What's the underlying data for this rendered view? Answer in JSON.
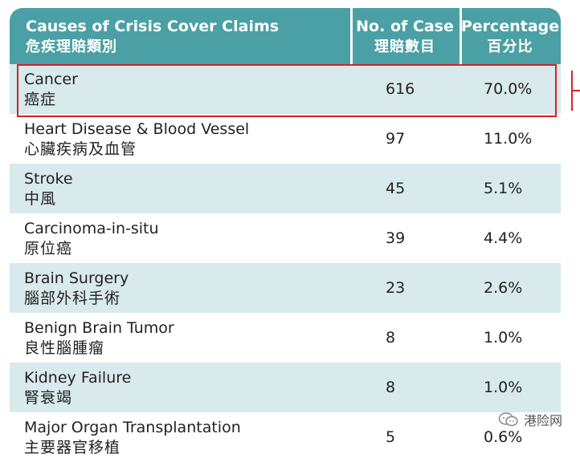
{
  "header": {
    "col1_en": "Causes of Crisis Cover Claims",
    "col1_zh": "危疾理賠類別",
    "col2_en": "No. of Case",
    "col2_zh": "理賠數目",
    "col3_en": "Percentage",
    "col3_zh": "百分比"
  },
  "rows": [
    {
      "en": "Cancer",
      "zh": "癌症",
      "cases": "616",
      "pct": "70.0%"
    },
    {
      "en": "Heart Disease & Blood Vessel",
      "zh": "心臟疾病及血管",
      "cases": "97",
      "pct": "11.0%"
    },
    {
      "en": "Stroke",
      "zh": "中風",
      "cases": "45",
      "pct": "5.1%"
    },
    {
      "en": "Carcinoma-in-situ",
      "zh": "原位癌",
      "cases": "39",
      "pct": "4.4%"
    },
    {
      "en": "Brain Surgery",
      "zh": "腦部外科手術",
      "cases": "23",
      "pct": "2.6%"
    },
    {
      "en": "Benign Brain Tumor",
      "zh": "良性腦腫瘤",
      "cases": "8",
      "pct": "1.0%"
    },
    {
      "en": "Kidney Failure",
      "zh": "腎衰竭",
      "cases": "8",
      "pct": "1.0%"
    },
    {
      "en": "Major Organ Transplantation",
      "zh": "主要器官移植",
      "cases": "5",
      "pct": "0.6%"
    }
  ],
  "watermark": {
    "text": "港险网",
    "icon": "chat-bubbles-icon"
  },
  "colors": {
    "header_bg": "#4aa0a4",
    "row_alt_bg": "#d8eaeb",
    "highlight": "#d2232a"
  }
}
